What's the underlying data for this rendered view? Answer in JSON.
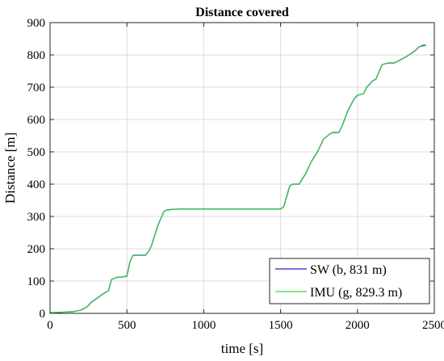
{
  "chart_data": {
    "type": "line",
    "title": "Distance covered",
    "xlabel": "time [s]",
    "ylabel": "Distance [m]",
    "xlim": [
      0,
      2500
    ],
    "ylim": [
      0,
      900
    ],
    "xticks": [
      0,
      500,
      1000,
      1500,
      2000,
      2500
    ],
    "yticks": [
      0,
      100,
      200,
      300,
      400,
      500,
      600,
      700,
      800,
      900
    ],
    "grid": true,
    "legend_position": "bottom-right",
    "series": [
      {
        "name": "SW (b, 831 m)",
        "color": "#2020c8",
        "x": [
          0,
          100,
          150,
          200,
          240,
          270,
          300,
          330,
          360,
          380,
          400,
          440,
          460,
          500,
          520,
          540,
          580,
          620,
          640,
          660,
          700,
          740,
          760,
          800,
          850,
          900,
          1000,
          1200,
          1400,
          1500,
          1520,
          1560,
          1580,
          1620,
          1660,
          1700,
          1740,
          1760,
          1780,
          1820,
          1840,
          1880,
          1900,
          1940,
          1980,
          2000,
          2040,
          2060,
          2100,
          2120,
          2160,
          2200,
          2240,
          2260,
          2300,
          2320,
          2380,
          2400,
          2440
        ],
        "y": [
          2,
          4,
          5,
          10,
          20,
          35,
          45,
          55,
          65,
          70,
          105,
          112,
          112,
          115,
          160,
          180,
          180,
          180,
          190,
          210,
          270,
          315,
          320,
          322,
          323,
          323,
          323,
          323,
          323,
          323,
          330,
          395,
          400,
          400,
          430,
          470,
          500,
          520,
          540,
          555,
          560,
          560,
          580,
          630,
          665,
          675,
          680,
          700,
          720,
          725,
          770,
          775,
          775,
          780,
          790,
          795,
          815,
          825,
          831
        ]
      },
      {
        "name": "IMU (g, 829.3 m)",
        "color": "#33dd33",
        "x": [
          0,
          100,
          150,
          200,
          240,
          270,
          300,
          330,
          360,
          380,
          400,
          440,
          460,
          500,
          520,
          540,
          580,
          620,
          640,
          660,
          700,
          740,
          760,
          800,
          850,
          900,
          1000,
          1200,
          1400,
          1500,
          1520,
          1560,
          1580,
          1620,
          1660,
          1700,
          1740,
          1760,
          1780,
          1820,
          1840,
          1880,
          1900,
          1940,
          1980,
          2000,
          2040,
          2060,
          2100,
          2120,
          2160,
          2200,
          2240,
          2260,
          2300,
          2320,
          2380,
          2400,
          2450
        ],
        "y": [
          2,
          4,
          5,
          10,
          20,
          35,
          45,
          55,
          65,
          70,
          105,
          112,
          112,
          115,
          160,
          180,
          180,
          180,
          190,
          210,
          270,
          315,
          320,
          322,
          323,
          323,
          323,
          323,
          323,
          323,
          330,
          395,
          400,
          400,
          430,
          470,
          500,
          520,
          540,
          555,
          560,
          560,
          580,
          630,
          665,
          675,
          680,
          700,
          720,
          725,
          770,
          775,
          775,
          780,
          790,
          795,
          815,
          825,
          829.3
        ]
      }
    ]
  }
}
